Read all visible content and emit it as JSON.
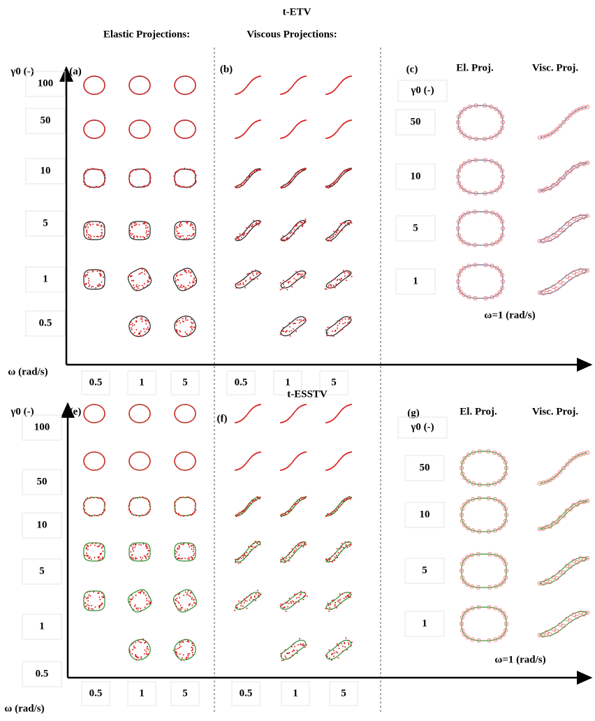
{
  "top": {
    "title": "t-ETV",
    "elastic_header": "Elastic Projections:",
    "viscous_header": "Viscous Projections:",
    "y_label": "γ0 (-)",
    "panels": [
      "(a)",
      "(b)",
      "(c)"
    ],
    "row_labels": [
      "100",
      "50",
      "10",
      "5",
      "1",
      "0.5"
    ],
    "x_label": "ω (rad/s)",
    "elastic_ticks": [
      "0.5",
      "1",
      "5"
    ],
    "viscous_ticks": [
      "0.5",
      "1",
      "5"
    ],
    "inset": {
      "y_label": "γ0 (-)",
      "col_headers": [
        "El. Proj.",
        "Visc. Proj."
      ],
      "row_labels": [
        "50",
        "10",
        "5",
        "1"
      ],
      "caption": "ω=1 (rad/s)"
    }
  },
  "bottom": {
    "title": "t-ESSTV",
    "y_label": "γ0 (-)",
    "panels": [
      "(e)",
      "(f)",
      "(g)"
    ],
    "row_labels": [
      "100",
      "50",
      "10",
      "5",
      "1",
      "0.5"
    ],
    "x_label": "ω (rad/s)",
    "elastic_ticks": [
      "0.5",
      "1",
      "5"
    ],
    "viscous_ticks": [
      "0.5",
      "1",
      "5"
    ],
    "inset": {
      "y_label": "γ0 (-)",
      "col_headers": [
        "El. Proj.",
        "Visc. Proj."
      ],
      "row_labels": [
        "50",
        "10",
        "5",
        "1"
      ],
      "caption": "ω=1 (rad/s)"
    }
  }
}
